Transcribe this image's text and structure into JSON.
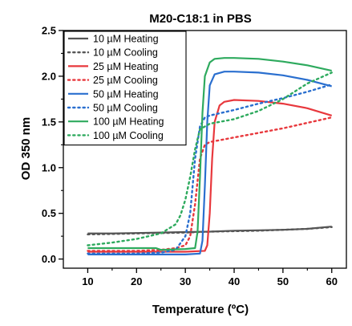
{
  "chart_data": {
    "type": "line",
    "title": "M20-C18:1 in PBS",
    "xlabel": "Temperature (ºC)",
    "ylabel": "OD 350 nm",
    "xlim": [
      5,
      63
    ],
    "ylim": [
      -0.1,
      2.5
    ],
    "xticks": [
      10,
      20,
      30,
      40,
      50,
      60
    ],
    "xtick_labels": [
      "10",
      "20",
      "30",
      "40",
      "50",
      "60"
    ],
    "yticks": [
      0.0,
      0.5,
      1.0,
      1.5,
      2.0,
      2.5
    ],
    "ytick_labels": [
      "0.0",
      "0.5",
      "1.0",
      "1.5",
      "2.0",
      "2.5"
    ],
    "grid": false,
    "legend_position": "upper-left",
    "series": [
      {
        "name": "10 µM Heating",
        "color": "#555555",
        "dash": "solid",
        "x": [
          10,
          15,
          20,
          25,
          30,
          35,
          40,
          45,
          50,
          55,
          60
        ],
        "y": [
          0.28,
          0.28,
          0.285,
          0.29,
          0.295,
          0.3,
          0.31,
          0.315,
          0.32,
          0.33,
          0.355
        ]
      },
      {
        "name": "10 µM Cooling",
        "color": "#555555",
        "dash": "dotted",
        "x": [
          10,
          15,
          20,
          25,
          30,
          35,
          40,
          45,
          50,
          55,
          60
        ],
        "y": [
          0.27,
          0.275,
          0.28,
          0.285,
          0.29,
          0.3,
          0.305,
          0.31,
          0.32,
          0.33,
          0.35
        ]
      },
      {
        "name": "25 µM Heating",
        "color": "#e8383d",
        "dash": "solid",
        "x": [
          10,
          20,
          30,
          34,
          34.5,
          35,
          35.5,
          36,
          37,
          38,
          40,
          45,
          50,
          55,
          60
        ],
        "y": [
          0.08,
          0.08,
          0.08,
          0.09,
          0.15,
          0.5,
          1.1,
          1.5,
          1.68,
          1.72,
          1.74,
          1.73,
          1.7,
          1.65,
          1.57
        ]
      },
      {
        "name": "25 µM Cooling",
        "color": "#e8383d",
        "dash": "dotted",
        "x": [
          10,
          20,
          25,
          28,
          30,
          31,
          32,
          33,
          34,
          35,
          40,
          45,
          50,
          55,
          60
        ],
        "y": [
          0.09,
          0.09,
          0.1,
          0.12,
          0.15,
          0.25,
          0.6,
          1.1,
          1.25,
          1.28,
          1.33,
          1.38,
          1.43,
          1.49,
          1.55
        ]
      },
      {
        "name": "50 µM Heating",
        "color": "#2a6fcf",
        "dash": "solid",
        "x": [
          10,
          20,
          30,
          33,
          33.5,
          34,
          34.5,
          35,
          36,
          38,
          40,
          45,
          50,
          55,
          60
        ],
        "y": [
          0.05,
          0.05,
          0.05,
          0.06,
          0.2,
          0.8,
          1.5,
          1.9,
          2.02,
          2.05,
          2.05,
          2.04,
          2.01,
          1.96,
          1.89
        ]
      },
      {
        "name": "50 µM Cooling",
        "color": "#2a6fcf",
        "dash": "dotted",
        "x": [
          10,
          20,
          25,
          28,
          30,
          31,
          32,
          33,
          34,
          35,
          40,
          45,
          50,
          55,
          60
        ],
        "y": [
          0.06,
          0.06,
          0.07,
          0.1,
          0.25,
          0.5,
          1.1,
          1.45,
          1.55,
          1.57,
          1.63,
          1.7,
          1.76,
          1.83,
          1.91
        ]
      },
      {
        "name": "100 µM Heating",
        "color": "#2eaa5e",
        "dash": "solid",
        "x": [
          10,
          20,
          24,
          25,
          30,
          32,
          32.5,
          33,
          33.5,
          34,
          35,
          36,
          38,
          40,
          45,
          50,
          55,
          60
        ],
        "y": [
          0.12,
          0.12,
          0.12,
          0.1,
          0.11,
          0.12,
          0.3,
          0.9,
          1.6,
          2.0,
          2.15,
          2.19,
          2.2,
          2.2,
          2.19,
          2.16,
          2.12,
          2.06
        ]
      },
      {
        "name": "100 µM Cooling",
        "color": "#2eaa5e",
        "dash": "dotted",
        "x": [
          10,
          15,
          20,
          25,
          28,
          29,
          30,
          31,
          32,
          33,
          35,
          40,
          45,
          50,
          55,
          60
        ],
        "y": [
          0.15,
          0.18,
          0.22,
          0.28,
          0.38,
          0.48,
          0.65,
          0.9,
          1.2,
          1.42,
          1.48,
          1.53,
          1.62,
          1.75,
          1.92,
          2.04
        ]
      }
    ]
  }
}
